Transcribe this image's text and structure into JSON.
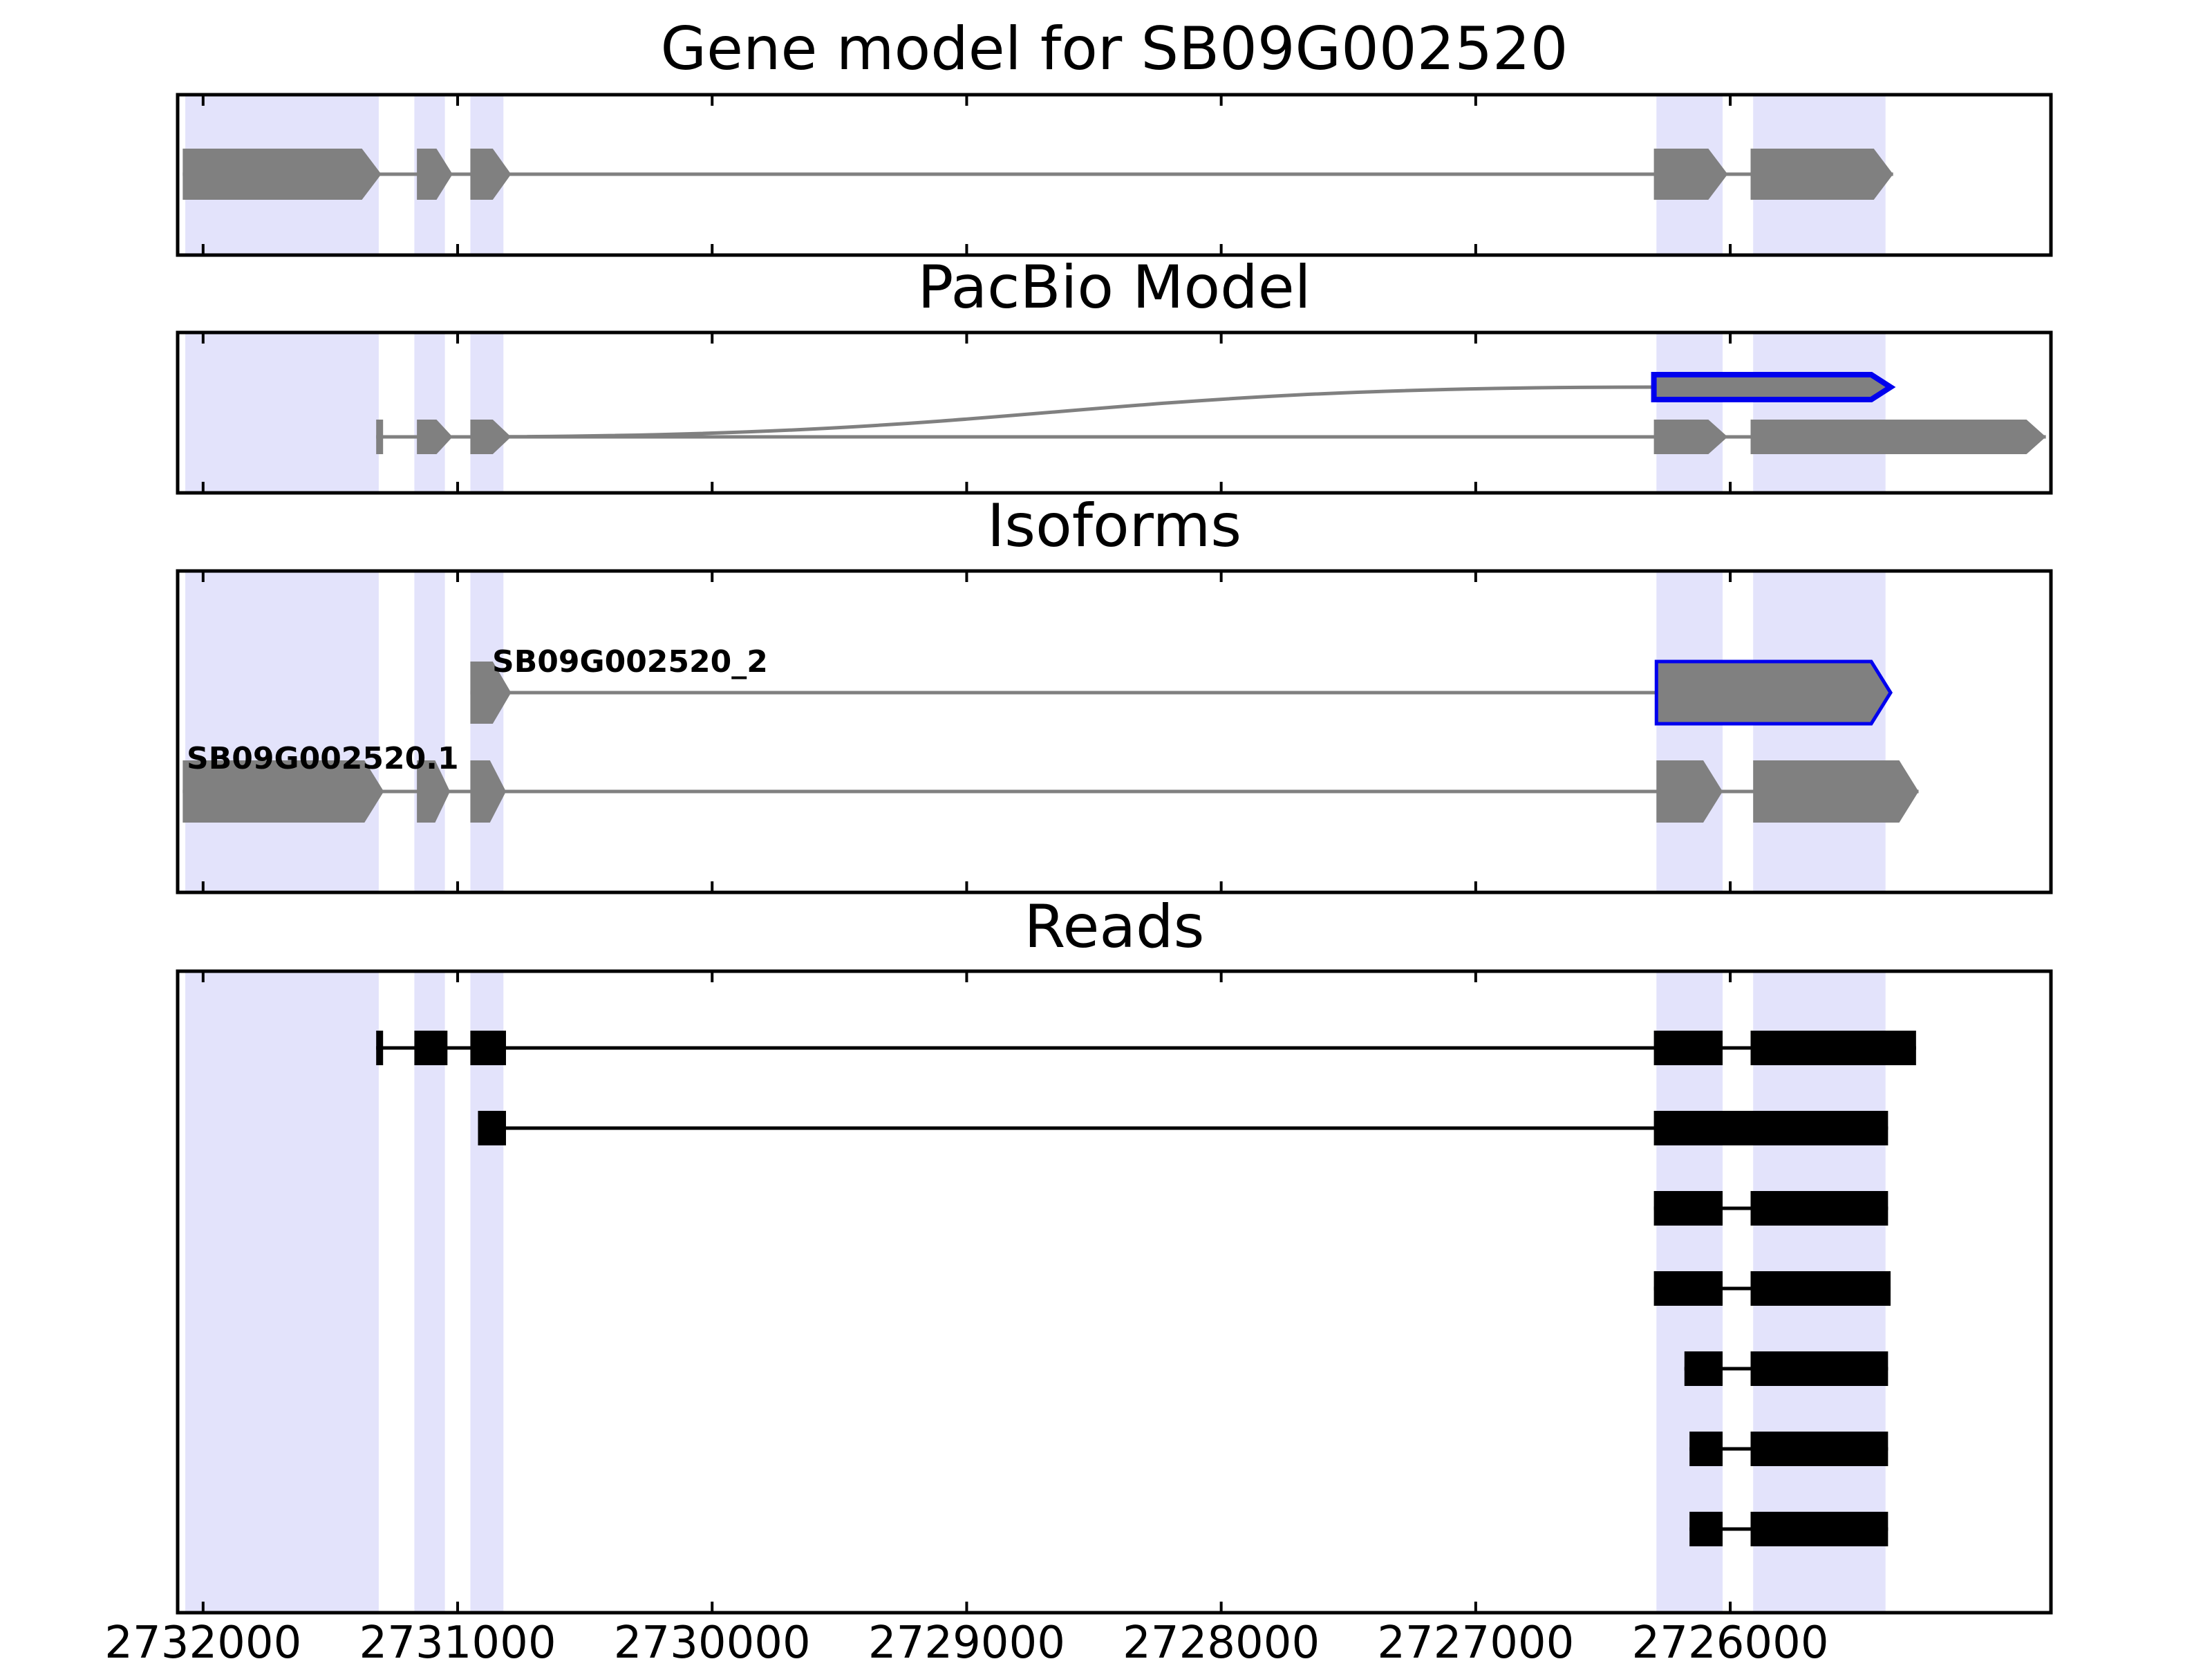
{
  "panels": {
    "gene_model": {
      "title": "Gene model for SB09G002520"
    },
    "pacbio_model": {
      "title": "PacBio Model"
    },
    "isoforms": {
      "title": "Isoforms",
      "labels": {
        "isoform_2": "SB09G002520_2",
        "isoform_1": "SB09G002520.1"
      }
    },
    "reads": {
      "title": "Reads"
    }
  },
  "chart_data": {
    "type": "gene-structure",
    "x_reversed": true,
    "xlim": [
      2732100,
      2724740
    ],
    "x_ticks": [
      2732000,
      2731000,
      2730000,
      2729000,
      2728000,
      2727000,
      2726000
    ],
    "x_tick_labels": [
      "2732000",
      "2731000",
      "2730000",
      "2729000",
      "2728000",
      "2727000",
      "2726000"
    ],
    "colors": {
      "exon": "#808080",
      "highlight": "#0000ee",
      "read": "#000000",
      "shade": "#e3e3fb",
      "intron": "#808080"
    },
    "shaded_exon_regions": [
      [
        2732070,
        2731310
      ],
      [
        2731170,
        2731050
      ],
      [
        2730950,
        2730820
      ],
      [
        2726290,
        2726030
      ],
      [
        2725910,
        2725390
      ]
    ],
    "gene_model": {
      "exons": [
        [
          2732080,
          2731300
        ],
        [
          2731160,
          2731020
        ],
        [
          2730950,
          2730790
        ],
        [
          2726300,
          2726010
        ],
        [
          2725920,
          2725360
        ]
      ]
    },
    "pacbio_model": {
      "tracks": [
        {
          "exons": [
            [
              2726300,
              2725370
            ]
          ],
          "highlight": true,
          "splice_from": 2731010
        },
        {
          "exons": [
            [
              2731320,
              2731300
            ],
            [
              2731160,
              2731020
            ],
            [
              2730950,
              2730790
            ],
            [
              2726300,
              2726010
            ],
            [
              2725920,
              2724760
            ]
          ]
        }
      ]
    },
    "isoforms": {
      "tracks": [
        {
          "label": "SB09G002520_2",
          "exons": [
            [
              2730950,
              2730790
            ],
            [
              2726290,
              2725370
            ]
          ],
          "highlight_exon": 1
        },
        {
          "label": "SB09G002520.1",
          "exons": [
            [
              2732080,
              2731290
            ],
            [
              2731160,
              2731030
            ],
            [
              2730950,
              2730810
            ],
            [
              2726290,
              2726030
            ],
            [
              2725910,
              2725260
            ]
          ]
        }
      ]
    },
    "reads": [
      [
        [
          2731320,
          2731300
        ],
        [
          2731170,
          2731040
        ],
        [
          2730950,
          2730810
        ],
        [
          2726300,
          2726030
        ],
        [
          2725920,
          2725270
        ]
      ],
      [
        [
          2730920,
          2730810
        ],
        [
          2726300,
          2725380
        ]
      ],
      [
        [
          2726300,
          2726030
        ],
        [
          2725920,
          2725380
        ]
      ],
      [
        [
          2726300,
          2726030
        ],
        [
          2725920,
          2725370
        ]
      ],
      [
        [
          2726180,
          2726030
        ],
        [
          2725920,
          2725380
        ]
      ],
      [
        [
          2726160,
          2726030
        ],
        [
          2725920,
          2725380
        ]
      ],
      [
        [
          2726160,
          2726030
        ],
        [
          2725920,
          2725380
        ]
      ]
    ]
  }
}
